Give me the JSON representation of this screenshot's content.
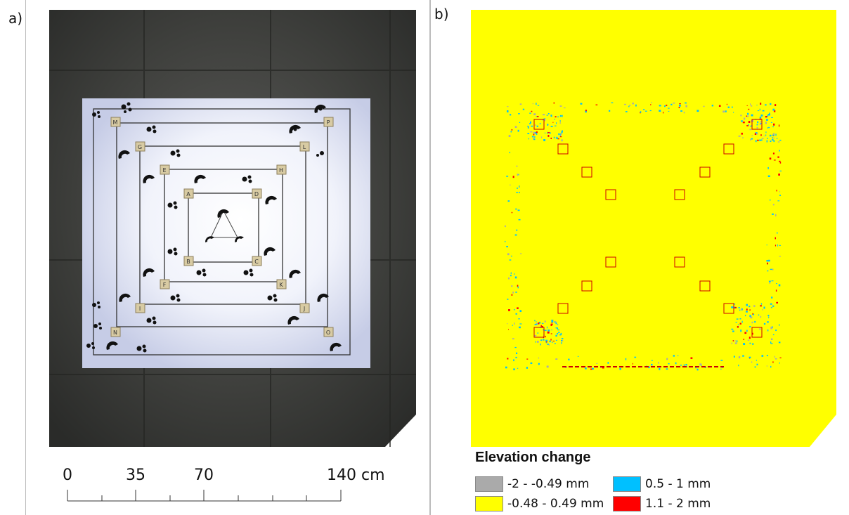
{
  "panel_a": {
    "label": "a)",
    "scale_bar": {
      "ticks": [
        "0",
        "35",
        "70",
        "140 cm"
      ]
    }
  },
  "panel_b": {
    "label": "b)",
    "legend": {
      "title": "Elevation change",
      "items": [
        {
          "label": "-2 - -0.49 mm",
          "color": "#aaaaaa"
        },
        {
          "label": "0.5 - 1 mm",
          "color": "#00c0ff"
        },
        {
          "label": "-0.48 - 0.49 mm",
          "color": "#ffff00"
        },
        {
          "label": "1.1 - 2 mm",
          "color": "#ff0000"
        }
      ]
    }
  },
  "target_letters": [
    "M",
    "P",
    "G",
    "L",
    "E",
    "H",
    "A",
    "D",
    "B",
    "C",
    "F",
    "K",
    "I",
    "J",
    "N",
    "O"
  ]
}
